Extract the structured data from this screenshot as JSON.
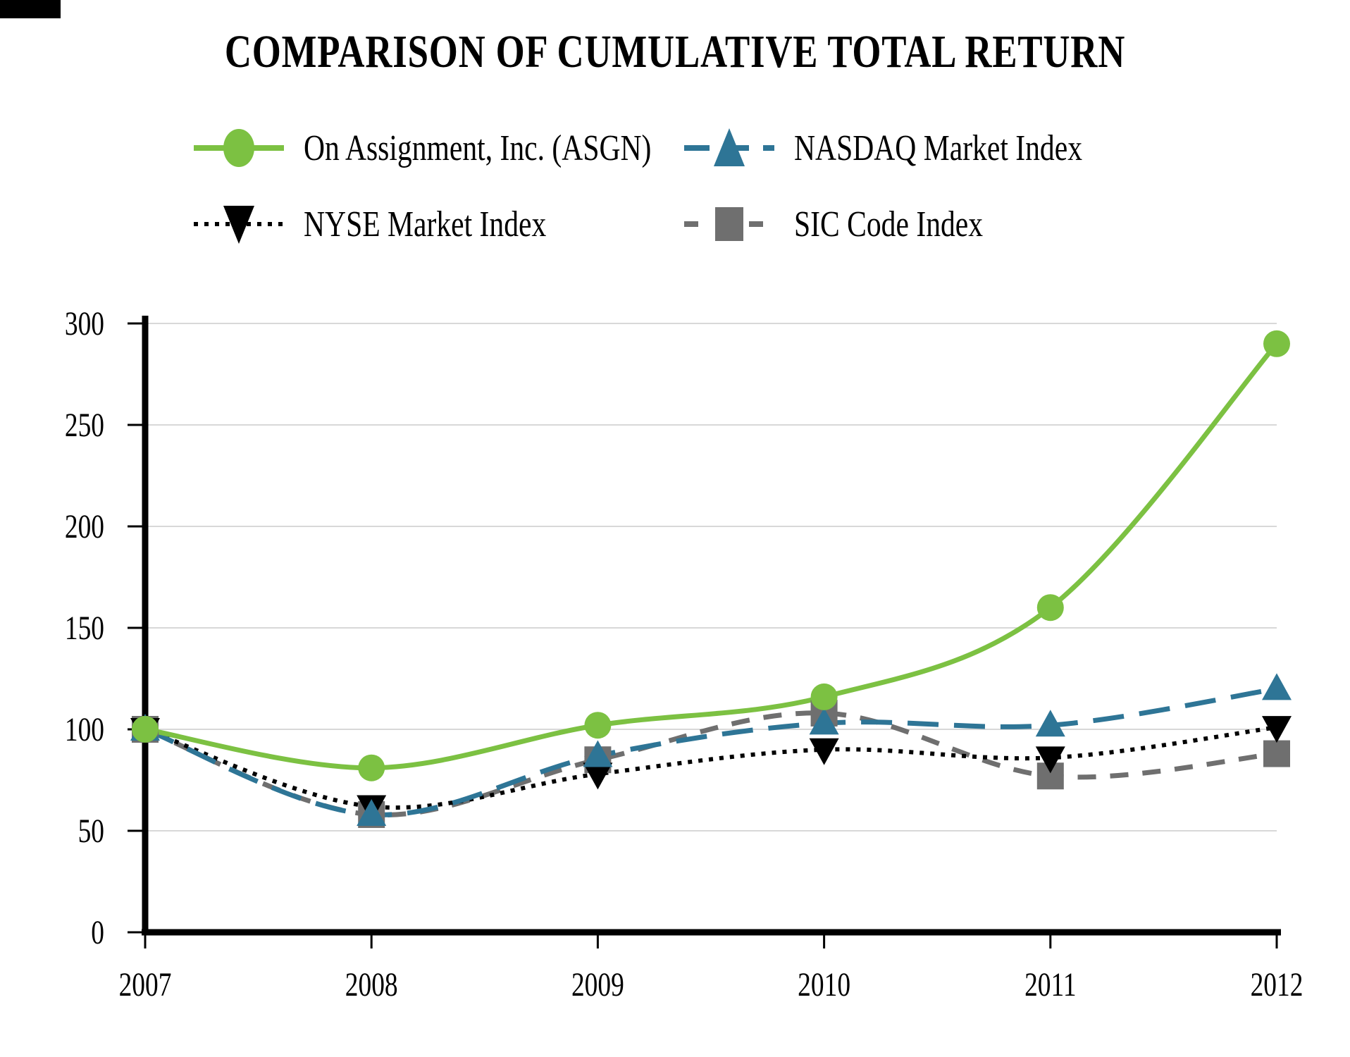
{
  "title": "COMPARISON OF CUMULATIVE TOTAL RETURN",
  "legend": [
    {
      "label": "On Assignment, Inc. (ASGN)",
      "series": "asgn"
    },
    {
      "label": "NASDAQ Market Index",
      "series": "nasdaq"
    },
    {
      "label": "NYSE Market Index",
      "series": "nyse"
    },
    {
      "label": "SIC Code Index",
      "series": "sic"
    }
  ],
  "chart_data": {
    "type": "line",
    "title": "COMPARISON OF CUMULATIVE TOTAL RETURN",
    "x": [
      "2007",
      "2008",
      "2009",
      "2010",
      "2011",
      "2012"
    ],
    "xlabel": "",
    "ylabel": "",
    "ylim": [
      0,
      300
    ],
    "yticks": [
      0,
      50,
      100,
      150,
      200,
      250,
      300
    ],
    "grid": true,
    "legend_position": "top",
    "line_smoothing": true,
    "axis_color": "#000000",
    "gridline_color": "#d8d8d8",
    "series": [
      {
        "name": "On Assignment, Inc. (ASGN)",
        "key": "asgn",
        "color": "#7cc142",
        "marker": "circle",
        "line_style": "solid",
        "values": [
          100,
          81,
          102,
          116,
          160,
          290
        ]
      },
      {
        "name": "NASDAQ Market Index",
        "key": "nasdaq",
        "color": "#2e7596",
        "marker": "triangle-up",
        "line_style": "long-dash",
        "values": [
          100,
          58,
          87,
          103,
          102,
          120
        ]
      },
      {
        "name": "NYSE Market Index",
        "key": "nyse",
        "color": "#000000",
        "marker": "triangle-down",
        "line_style": "dotted",
        "values": [
          100,
          62,
          78,
          90,
          86,
          101
        ]
      },
      {
        "name": "SIC Code Index",
        "key": "sic",
        "color": "#6f6f6f",
        "marker": "square",
        "line_style": "dash",
        "values": [
          100,
          58,
          85,
          108,
          77,
          88
        ]
      }
    ]
  }
}
